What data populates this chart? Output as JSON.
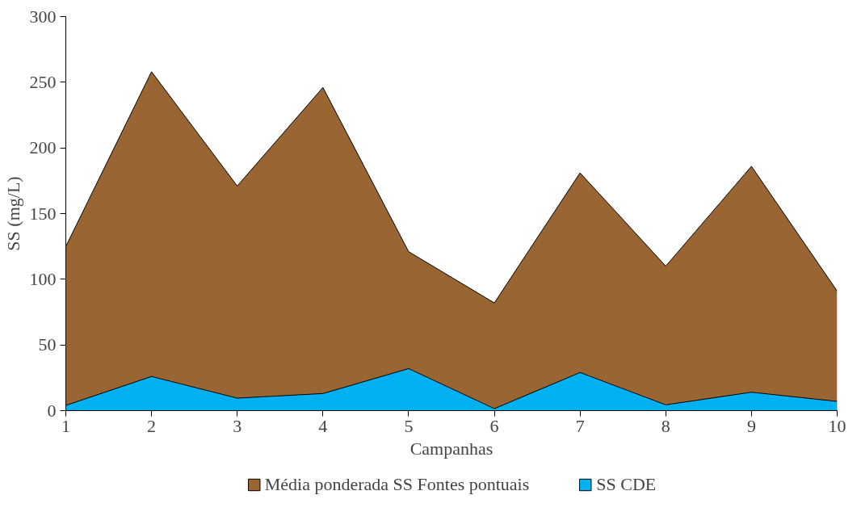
{
  "chart_data": {
    "type": "area",
    "xlabel": "Campanhas",
    "ylabel": "SS (mg/L)",
    "x": [
      1,
      2,
      3,
      4,
      5,
      6,
      7,
      8,
      9,
      10
    ],
    "xlim": [
      1,
      10
    ],
    "xticks": [
      1,
      2,
      3,
      4,
      5,
      6,
      7,
      8,
      9,
      10
    ],
    "ylim": [
      0,
      300
    ],
    "yticks": [
      0,
      50,
      100,
      150,
      200,
      250,
      300
    ],
    "grid": false,
    "legend": "bottom",
    "series": [
      {
        "name": "Média ponderada SS Fontes pontuais",
        "color": "#996633",
        "values": [
          125,
          258,
          171,
          246,
          121,
          82,
          181,
          110,
          186,
          91
        ]
      },
      {
        "name": "SS CDE",
        "color": "#00b0f0",
        "values": [
          4,
          26,
          9.5,
          13,
          32,
          1.5,
          29,
          4.4,
          14,
          7
        ]
      }
    ]
  }
}
